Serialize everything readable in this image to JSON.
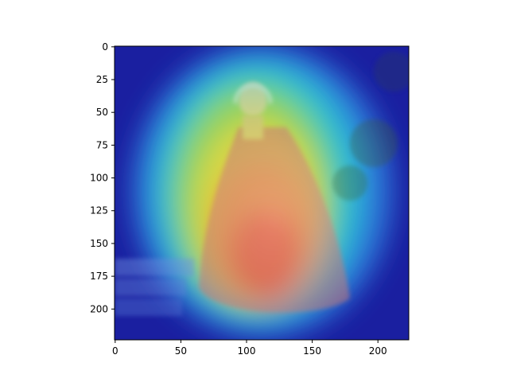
{
  "chart_data": {
    "type": "heatmap",
    "title": "",
    "xlabel": "",
    "ylabel": "",
    "xlim": [
      -0.5,
      223.5
    ],
    "ylim": [
      223.5,
      -0.5
    ],
    "y_inverted": true,
    "x_ticks": [
      0,
      50,
      100,
      150,
      200
    ],
    "y_ticks": [
      0,
      25,
      50,
      75,
      100,
      125,
      150,
      175,
      200
    ],
    "x_tick_labels": [
      "0",
      "50",
      "100",
      "150",
      "200"
    ],
    "y_tick_labels": [
      "0",
      "25",
      "50",
      "75",
      "100",
      "125",
      "150",
      "175",
      "200"
    ],
    "grid": false,
    "colormap": "jet",
    "image_description": "Attention heatmap (jet colormap) overlaid on a vintage photograph of a woman in a bonnet and wide crinoline dress",
    "hotspots": [
      {
        "x": 112,
        "y": 170,
        "intensity": 1.0
      },
      {
        "x": 130,
        "y": 120,
        "intensity": 0.85
      },
      {
        "x": 95,
        "y": 120,
        "intensity": 0.75
      },
      {
        "x": 130,
        "y": 75,
        "intensity": 0.55
      },
      {
        "x": 100,
        "y": 60,
        "intensity": 0.5
      },
      {
        "x": 60,
        "y": 175,
        "intensity": 0.35
      }
    ]
  }
}
